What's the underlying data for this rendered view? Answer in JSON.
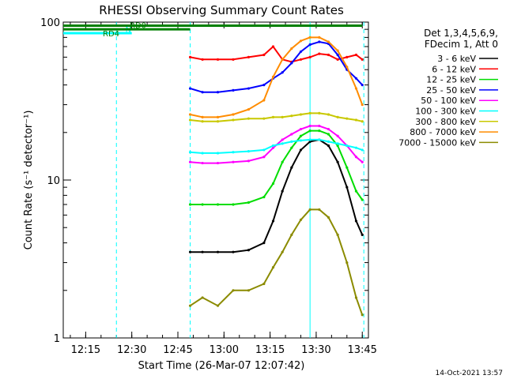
{
  "chart_data": {
    "type": "line",
    "title": "RHESSI Observing Summary Count Rates",
    "xlabel": "Start Time (26-Mar-07 12:07:42)",
    "ylabel": "Count Rate (s⁻¹ detector⁻¹)",
    "yscale": "log",
    "ylim": [
      1,
      100
    ],
    "xlim": [
      "12:07:42",
      "13:47:00"
    ],
    "x_ticks": [
      "12:15",
      "12:30",
      "12:45",
      "13:00",
      "13:15",
      "13:30",
      "13:45"
    ],
    "y_ticks": [
      1,
      10,
      100
    ],
    "footer": "14-Oct-2021 13:57",
    "legend_header": [
      "Det 1,3,4,5,6,9,",
      "FDecim 1, Att 0"
    ],
    "legend_position": "right",
    "grid": false,
    "x": [
      "12:49",
      "12:53",
      "12:58",
      "13:03",
      "13:08",
      "13:13",
      "13:16",
      "13:19",
      "13:22",
      "13:25",
      "13:28",
      "13:31",
      "13:34",
      "13:37",
      "13:40",
      "13:43",
      "13:45"
    ],
    "series": [
      {
        "name": "3 - 6 keV",
        "color": "#000000",
        "values": [
          3.5,
          3.5,
          3.5,
          3.5,
          3.6,
          4.0,
          5.5,
          8.5,
          12.0,
          15.5,
          17.5,
          18.0,
          16.5,
          13.0,
          9.0,
          5.5,
          4.5
        ]
      },
      {
        "name": "6 - 12 keV",
        "color": "#ff0000",
        "values": [
          60,
          58,
          58,
          58,
          60,
          62,
          70,
          58,
          56,
          58,
          60,
          63,
          62,
          58,
          60,
          62,
          58
        ]
      },
      {
        "name": "12 - 25 keV",
        "color": "#00dd00",
        "values": [
          7.0,
          7.0,
          7.0,
          7.0,
          7.2,
          7.8,
          9.5,
          13.0,
          16.0,
          19.0,
          20.5,
          20.5,
          19.5,
          16.5,
          12.0,
          8.5,
          7.5
        ]
      },
      {
        "name": "25 - 50 keV",
        "color": "#0000ff",
        "values": [
          38,
          36,
          36,
          37,
          38,
          40,
          44,
          48,
          55,
          65,
          72,
          75,
          73,
          62,
          50,
          44,
          40
        ]
      },
      {
        "name": "50 - 100 keV",
        "color": "#ff00ff",
        "values": [
          13.0,
          12.8,
          12.8,
          13.0,
          13.2,
          14.0,
          16.0,
          18.0,
          19.5,
          21.0,
          22.0,
          22.0,
          21.0,
          19.0,
          16.5,
          14.0,
          13.0
        ]
      },
      {
        "name": "100 - 300 keV",
        "color": "#00ffff",
        "values": [
          15.0,
          14.8,
          14.8,
          15.0,
          15.2,
          15.5,
          16.5,
          17.0,
          17.5,
          17.8,
          18.0,
          18.0,
          17.5,
          17.0,
          16.5,
          16.0,
          15.5
        ]
      },
      {
        "name": "300 - 800 keV",
        "color": "#c8c800",
        "values": [
          24.0,
          23.5,
          23.5,
          24.0,
          24.5,
          24.5,
          25.0,
          25.0,
          25.5,
          26.0,
          26.5,
          26.5,
          26.0,
          25.0,
          24.5,
          24.0,
          23.5
        ]
      },
      {
        "name": "800 - 7000 keV",
        "color": "#ff8c00",
        "values": [
          26,
          25,
          25,
          26,
          28,
          32,
          45,
          58,
          68,
          76,
          80,
          80,
          75,
          66,
          52,
          38,
          30
        ]
      },
      {
        "name": "7000 - 15000 keV",
        "color": "#8b8b00",
        "values": [
          1.6,
          1.8,
          1.6,
          2.0,
          2.0,
          2.2,
          2.8,
          3.5,
          4.5,
          5.6,
          6.5,
          6.5,
          5.8,
          4.5,
          3.0,
          1.8,
          1.4
        ]
      }
    ],
    "annotations": [
      {
        "text": "N",
        "color": "#00ffff",
        "y": 100,
        "x_start": "12:07:42",
        "x_end": "12:30:00"
      },
      {
        "text": "RD0",
        "color": "#008000",
        "y": 95,
        "x_start": "12:07:42",
        "x_end": "13:45:00"
      },
      {
        "text": "RD4",
        "color": "#008000",
        "y": 90,
        "x_start": "12:07:42",
        "x_end": "12:49:00"
      }
    ],
    "vlines": [
      {
        "x": "12:25:00",
        "color": "#00ffff",
        "dashed": true
      },
      {
        "x": "12:49:00",
        "color": "#00ffff",
        "dashed": true
      },
      {
        "x": "13:28:00",
        "color": "#00ffff",
        "dashed": false
      },
      {
        "x": "13:45:30",
        "color": "#00ffff",
        "dashed": true
      }
    ]
  }
}
